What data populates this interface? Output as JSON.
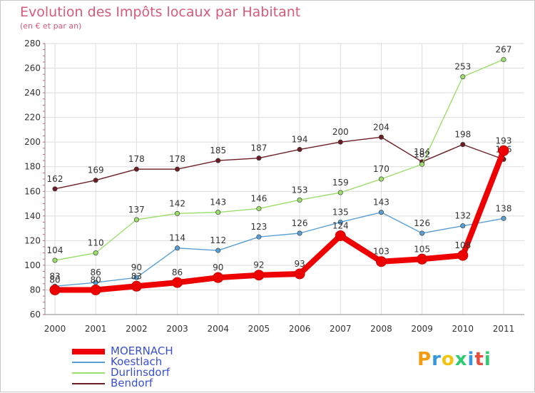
{
  "title": "Evolution des Impôts locaux par Habitant",
  "subtitle": "(en € et par an)",
  "logo": {
    "text": "Proxiti",
    "colors": [
      "#f39c12",
      "#3498db",
      "#f1c40f",
      "#2ecc71",
      "#3498db",
      "#e74c3c",
      "#2ecc71"
    ]
  },
  "chart_data": {
    "type": "line",
    "categories": [
      "2000",
      "2001",
      "2002",
      "2003",
      "2004",
      "2005",
      "2006",
      "2007",
      "2008",
      "2009",
      "2010",
      "2011"
    ],
    "ylim": [
      60,
      280
    ],
    "yticks": [
      60,
      80,
      100,
      120,
      140,
      160,
      180,
      200,
      220,
      240,
      260,
      280
    ],
    "grid": true,
    "series": [
      {
        "name": "MOERNACH",
        "color": "#ee0000",
        "values": [
          80,
          80,
          83,
          86,
          90,
          92,
          93,
          124,
          103,
          105,
          108,
          193
        ]
      },
      {
        "name": "Koestlach",
        "color": "#5a9fd4",
        "values": [
          83,
          86,
          90,
          114,
          112,
          123,
          126,
          135,
          143,
          126,
          132,
          138
        ]
      },
      {
        "name": "Durlinsdorf",
        "color": "#9cde6c",
        "values": [
          104,
          110,
          137,
          142,
          143,
          146,
          153,
          159,
          170,
          182,
          253,
          267
        ]
      },
      {
        "name": "Bendorf",
        "color": "#6b1e24",
        "values": [
          162,
          169,
          178,
          178,
          185,
          187,
          194,
          200,
          204,
          184,
          198,
          186
        ]
      }
    ]
  }
}
